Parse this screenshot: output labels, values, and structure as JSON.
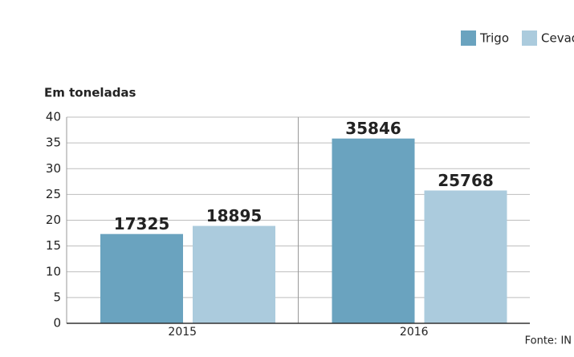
{
  "chart_data": {
    "type": "bar",
    "y_label": "Em toneladas",
    "source": "Fonte: IN",
    "categories": [
      "2015",
      "2016"
    ],
    "series": [
      {
        "name": "Trigo",
        "color": "#6aa3bf",
        "values": [
          17.325,
          35.846
        ],
        "value_labels": [
          "17325",
          "35846"
        ]
      },
      {
        "name": "Cevad",
        "color": "#abcbdd",
        "values": [
          18.895,
          25.768
        ],
        "value_labels": [
          "18895",
          "25768"
        ]
      }
    ],
    "ylim": [
      0,
      40
    ],
    "yticks": [
      0,
      5,
      10,
      15,
      20,
      25,
      30,
      35,
      40
    ],
    "grid": true
  }
}
